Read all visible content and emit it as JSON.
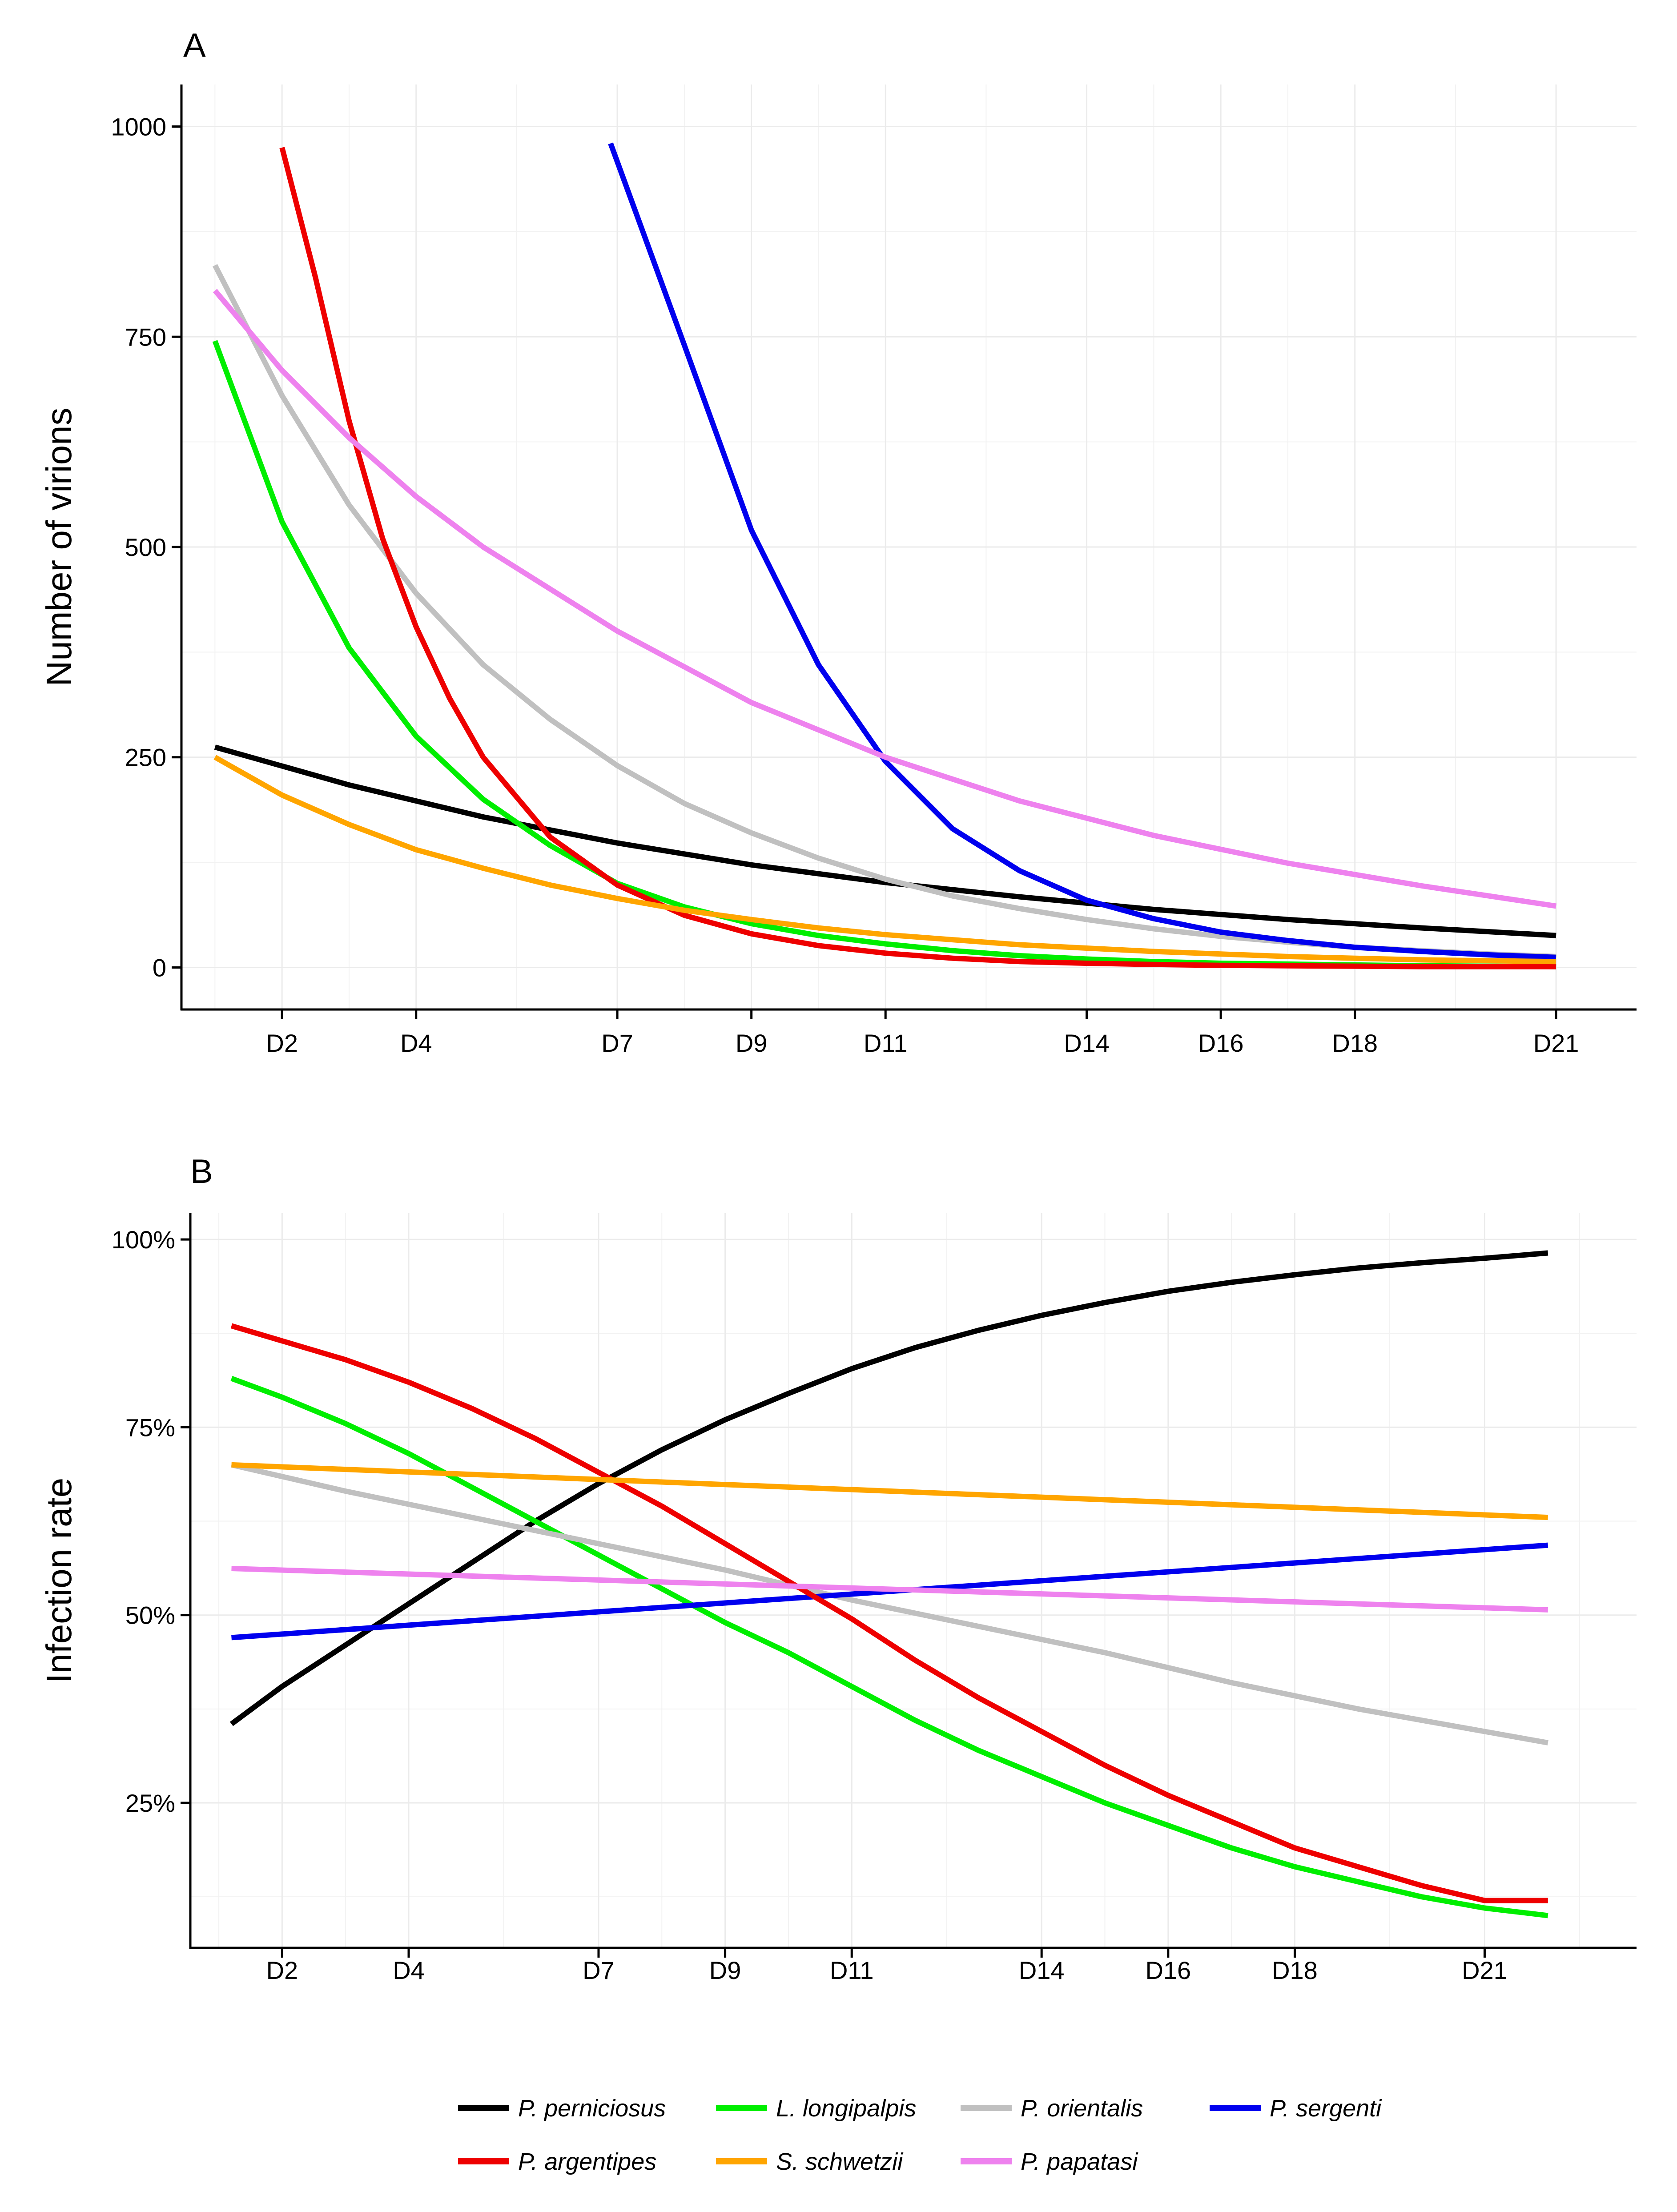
{
  "chart_data": [
    {
      "panel": "A",
      "type": "line",
      "title": "",
      "xlabel": "",
      "ylabel": "Number of virions",
      "xlim": [
        0.5,
        22.2
      ],
      "ylim": [
        -50,
        1050
      ],
      "x_ticks": [
        2,
        4,
        7,
        9,
        11,
        14,
        16,
        18,
        21
      ],
      "x_tick_labels": [
        "D2",
        "D4",
        "D7",
        "D9",
        "D11",
        "D14",
        "D16",
        "D18",
        "D21"
      ],
      "y_ticks": [
        0,
        250,
        500,
        750,
        1000
      ],
      "y_tick_labels": [
        "0",
        "250",
        "500",
        "750",
        "1000"
      ],
      "grid": true,
      "series": [
        {
          "name": "P. perniciosus",
          "color": "#000000",
          "x": [
            1,
            3,
            5,
            7,
            9,
            11,
            13,
            15,
            17,
            19,
            21
          ],
          "y": [
            262,
            217,
            179,
            148,
            122,
            101,
            84,
            69,
            57,
            47,
            38
          ]
        },
        {
          "name": "L. longipalpis",
          "color": "#00ee00",
          "x": [
            1,
            2,
            3,
            4,
            5,
            6,
            7,
            8,
            9,
            10,
            11,
            12,
            13,
            14,
            15,
            16,
            17,
            18,
            19,
            20,
            21
          ],
          "y": [
            745,
            530,
            380,
            275,
            200,
            145,
            100,
            72,
            52,
            38,
            28,
            20,
            14,
            10,
            7,
            5,
            4,
            3,
            2,
            1.5,
            1
          ]
        },
        {
          "name": "P. orientalis",
          "color": "#c0c0c0",
          "x": [
            1,
            2,
            3,
            4,
            5,
            6,
            7,
            8,
            9,
            10,
            11,
            12,
            13,
            14,
            15,
            16,
            17,
            18,
            19,
            20,
            21
          ],
          "y": [
            835,
            680,
            550,
            445,
            360,
            295,
            240,
            195,
            160,
            130,
            105,
            85,
            70,
            57,
            46,
            37,
            30,
            24,
            20,
            16,
            13
          ]
        },
        {
          "name": "P. sergenti",
          "color": "#0000ee",
          "x": [
            6.9,
            8,
            9,
            10,
            11,
            12,
            13,
            14,
            15,
            16,
            17,
            18,
            19,
            20,
            21
          ],
          "y": [
            980,
            740,
            520,
            360,
            245,
            165,
            115,
            80,
            58,
            42,
            32,
            24,
            19,
            15,
            12
          ]
        },
        {
          "name": "P. argentipes",
          "color": "#ee0000",
          "x": [
            2,
            2.5,
            3,
            3.5,
            4,
            4.5,
            5,
            6,
            7,
            8,
            9,
            10,
            11,
            12,
            13,
            14,
            15,
            16,
            17,
            18,
            19,
            20,
            21
          ],
          "y": [
            975,
            820,
            650,
            510,
            405,
            320,
            250,
            155,
            98,
            62,
            40,
            26,
            17,
            11,
            7,
            5,
            3.5,
            2.5,
            2,
            1.5,
            1,
            1,
            1
          ]
        },
        {
          "name": "S. schwetzii",
          "color": "#ffa500",
          "x": [
            1,
            2,
            3,
            4,
            5,
            6,
            7,
            8,
            9,
            10,
            11,
            12,
            13,
            14,
            15,
            16,
            17,
            18,
            19,
            20,
            21
          ],
          "y": [
            250,
            205,
            170,
            140,
            118,
            98,
            82,
            68,
            57,
            47,
            39,
            33,
            27,
            23,
            19,
            16,
            13,
            11,
            9,
            8,
            7
          ]
        },
        {
          "name": "P. papatasi",
          "color": "#ee82ee",
          "x": [
            1,
            2,
            3,
            4,
            5,
            7,
            9,
            11,
            13,
            15,
            17,
            19,
            21
          ],
          "y": [
            805,
            710,
            630,
            560,
            500,
            400,
            315,
            250,
            198,
            157,
            124,
            97,
            73
          ]
        }
      ]
    },
    {
      "panel": "B",
      "type": "line",
      "title": "",
      "xlabel": "",
      "ylabel": "Infection rate",
      "xlim": [
        0.55,
        23.4
      ],
      "ylim": [
        0.057,
        1.035
      ],
      "x_ticks": [
        2,
        4,
        7,
        9,
        11,
        14,
        16,
        18,
        21
      ],
      "x_tick_labels": [
        "D2",
        "D4",
        "D7",
        "D9",
        "D11",
        "D14",
        "D16",
        "D18",
        "D21"
      ],
      "y_ticks": [
        0.25,
        0.5,
        0.75,
        1.0
      ],
      "y_tick_labels": [
        "25%",
        "50%",
        "75%",
        "100%"
      ],
      "grid": true,
      "series": [
        {
          "name": "P. perniciosus",
          "color": "#000000",
          "x": [
            1.2,
            2,
            3,
            4,
            5,
            6,
            7,
            8,
            9,
            10,
            11,
            12,
            13,
            14,
            15,
            16,
            17,
            18,
            19,
            20,
            21,
            22
          ],
          "y": [
            0.355,
            0.405,
            0.46,
            0.515,
            0.57,
            0.625,
            0.675,
            0.72,
            0.76,
            0.795,
            0.828,
            0.856,
            0.879,
            0.899,
            0.916,
            0.931,
            0.943,
            0.953,
            0.962,
            0.969,
            0.975,
            0.982
          ]
        },
        {
          "name": "L. longipalpis",
          "color": "#00ee00",
          "x": [
            1.2,
            2,
            3,
            4,
            5,
            6,
            7,
            8,
            9,
            10,
            11,
            12,
            13,
            14,
            15,
            16,
            17,
            18,
            19,
            20,
            21,
            22
          ],
          "y": [
            0.815,
            0.79,
            0.755,
            0.715,
            0.67,
            0.625,
            0.58,
            0.535,
            0.49,
            0.45,
            0.405,
            0.36,
            0.32,
            0.285,
            0.25,
            0.22,
            0.19,
            0.165,
            0.145,
            0.125,
            0.11,
            0.1
          ]
        },
        {
          "name": "P. orientalis",
          "color": "#c0c0c0",
          "x": [
            1.2,
            3,
            5,
            7,
            9,
            11,
            13,
            15,
            17,
            19,
            21,
            22
          ],
          "y": [
            0.7,
            0.665,
            0.63,
            0.595,
            0.56,
            0.52,
            0.485,
            0.45,
            0.41,
            0.375,
            0.345,
            0.33
          ]
        },
        {
          "name": "P. sergenti",
          "color": "#0000ee",
          "x": [
            1.2,
            22
          ],
          "y": [
            0.47,
            0.593
          ]
        },
        {
          "name": "P. argentipes",
          "color": "#ee0000",
          "x": [
            1.2,
            2,
            3,
            4,
            5,
            6,
            7,
            8,
            9,
            10,
            11,
            12,
            13,
            14,
            15,
            16,
            17,
            18,
            19,
            20,
            21,
            22
          ],
          "y": [
            0.885,
            0.865,
            0.84,
            0.81,
            0.775,
            0.735,
            0.69,
            0.645,
            0.595,
            0.545,
            0.495,
            0.44,
            0.39,
            0.345,
            0.3,
            0.26,
            0.225,
            0.19,
            0.165,
            0.14,
            0.12,
            0.12
          ]
        },
        {
          "name": "S. schwetzii",
          "color": "#ffa500",
          "x": [
            1.2,
            22
          ],
          "y": [
            0.7,
            0.63
          ]
        },
        {
          "name": "P. papatasi",
          "color": "#ee82ee",
          "x": [
            1.2,
            22
          ],
          "y": [
            0.562,
            0.507
          ]
        }
      ]
    }
  ],
  "legend": {
    "placement": "bottom",
    "entries": [
      {
        "label": "P. perniciosus",
        "color": "#000000"
      },
      {
        "label": "L. longipalpis",
        "color": "#00ee00"
      },
      {
        "label": "P. orientalis",
        "color": "#c0c0c0"
      },
      {
        "label": "P. sergenti",
        "color": "#0000ee"
      },
      {
        "label": "P. argentipes",
        "color": "#ee0000"
      },
      {
        "label": "S. schwetzii",
        "color": "#ffa500"
      },
      {
        "label": "P. papatasi",
        "color": "#ee82ee"
      }
    ]
  }
}
